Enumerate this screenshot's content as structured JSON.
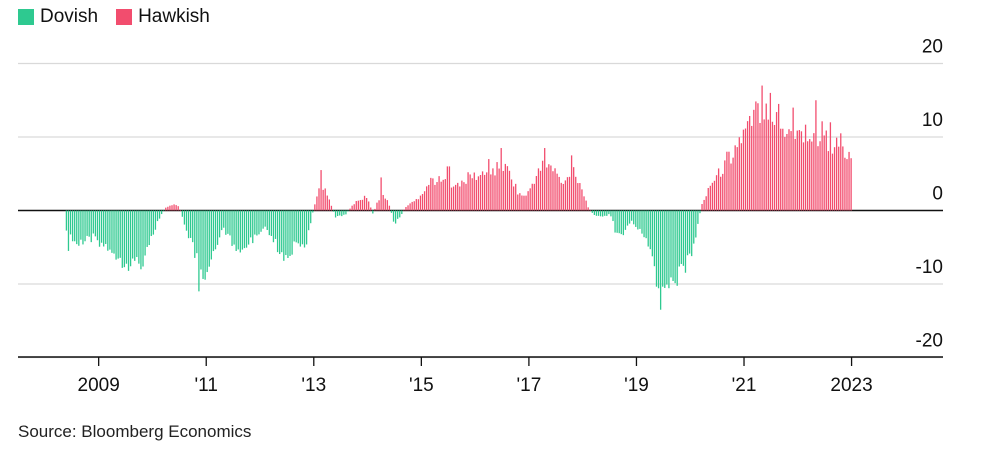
{
  "legend": [
    {
      "label": "Dovish",
      "color": "#2ec990"
    },
    {
      "label": "Hawkish",
      "color": "#f24d6e"
    }
  ],
  "source": "Source: Bloomberg Economics",
  "chart_data": {
    "type": "bar",
    "title": "",
    "xlabel": "",
    "ylabel": "",
    "ylim": [
      -20,
      20
    ],
    "y_ticks": [
      20,
      10,
      0,
      -10,
      -20
    ],
    "y_tick_labels": [
      "20",
      "10",
      "0",
      "-10",
      "-20"
    ],
    "grid": true,
    "x_range": [
      2007.5,
      2024.7
    ],
    "x_ticks": [
      2009,
      2011,
      2013,
      2015,
      2017,
      2019,
      2021,
      2023
    ],
    "x_tick_labels": [
      "2009",
      "'11",
      "'13",
      "'15",
      "'17",
      "'19",
      "'21",
      "2023"
    ],
    "dovish_color": "#2ec990",
    "hawkish_color": "#f24d6e",
    "bar_step": 0.0385,
    "series_knots": [
      [
        2008.4,
        -3.5
      ],
      [
        2008.6,
        -5
      ],
      [
        2008.9,
        -4
      ],
      [
        2009.2,
        -5.5
      ],
      [
        2009.5,
        -7.5
      ],
      [
        2009.8,
        -7.5
      ],
      [
        2009.95,
        -5
      ],
      [
        2010.1,
        -1.5
      ],
      [
        2010.25,
        0.5
      ],
      [
        2010.4,
        1
      ],
      [
        2010.5,
        0.5
      ],
      [
        2010.6,
        -2
      ],
      [
        2010.8,
        -6.5
      ],
      [
        2010.9,
        -10
      ],
      [
        2011.0,
        -9
      ],
      [
        2011.15,
        -5.5
      ],
      [
        2011.3,
        -2.5
      ],
      [
        2011.5,
        -5
      ],
      [
        2011.7,
        -5.5
      ],
      [
        2011.9,
        -4
      ],
      [
        2012.1,
        -2
      ],
      [
        2012.3,
        -5
      ],
      [
        2012.5,
        -7
      ],
      [
        2012.7,
        -4
      ],
      [
        2012.85,
        -5.5
      ],
      [
        2013.0,
        0.5
      ],
      [
        2013.15,
        4
      ],
      [
        2013.3,
        1.5
      ],
      [
        2013.4,
        -1
      ],
      [
        2013.6,
        -0.5
      ],
      [
        2013.8,
        1.5
      ],
      [
        2014.0,
        2
      ],
      [
        2014.1,
        -0.5
      ],
      [
        2014.25,
        2.5
      ],
      [
        2014.4,
        1
      ],
      [
        2014.5,
        -2
      ],
      [
        2014.6,
        -1
      ],
      [
        2014.7,
        0.5
      ],
      [
        2014.9,
        1.5
      ],
      [
        2015.0,
        2.5
      ],
      [
        2015.2,
        4.5
      ],
      [
        2015.5,
        4
      ],
      [
        2015.7,
        3.5
      ],
      [
        2015.9,
        5
      ],
      [
        2016.1,
        5
      ],
      [
        2016.3,
        5.5
      ],
      [
        2016.5,
        6.5
      ],
      [
        2016.65,
        5.5
      ],
      [
        2016.8,
        2.5
      ],
      [
        2016.95,
        2
      ],
      [
        2017.1,
        4.5
      ],
      [
        2017.3,
        7
      ],
      [
        2017.5,
        5.5
      ],
      [
        2017.65,
        3.5
      ],
      [
        2017.8,
        6.5
      ],
      [
        2017.95,
        4
      ],
      [
        2018.1,
        0.5
      ],
      [
        2018.2,
        -0.5
      ],
      [
        2018.35,
        -1
      ],
      [
        2018.5,
        -0.5
      ],
      [
        2018.6,
        -2.5
      ],
      [
        2018.75,
        -3.5
      ],
      [
        2018.9,
        -1.5
      ],
      [
        2019.0,
        -2.5
      ],
      [
        2019.2,
        -4
      ],
      [
        2019.35,
        -9
      ],
      [
        2019.45,
        -12.5
      ],
      [
        2019.55,
        -11.5
      ],
      [
        2019.7,
        -11
      ],
      [
        2019.85,
        -9
      ],
      [
        2020.0,
        -6.5
      ],
      [
        2020.1,
        -4
      ],
      [
        2020.2,
        0.5
      ],
      [
        2020.35,
        3.5
      ],
      [
        2020.5,
        5
      ],
      [
        2020.65,
        6.5
      ],
      [
        2020.8,
        8.5
      ],
      [
        2020.95,
        10.5
      ],
      [
        2021.1,
        12
      ],
      [
        2021.25,
        14.5
      ],
      [
        2021.4,
        16
      ],
      [
        2021.55,
        13.5
      ],
      [
        2021.7,
        11.5
      ],
      [
        2021.85,
        12.5
      ],
      [
        2022.0,
        11
      ],
      [
        2022.15,
        11.5
      ],
      [
        2022.3,
        10
      ],
      [
        2022.45,
        11.5
      ],
      [
        2022.55,
        10
      ],
      [
        2022.7,
        9.5
      ],
      [
        2022.85,
        8
      ],
      [
        2022.95,
        7.5
      ],
      [
        2023.0,
        7.5
      ]
    ],
    "spikes": [
      [
        2008.45,
        -5.5
      ],
      [
        2009.8,
        -8
      ],
      [
        2010.85,
        -11
      ],
      [
        2013.15,
        5.5
      ],
      [
        2013.3,
        1.5
      ],
      [
        2014.25,
        4.5
      ],
      [
        2015.5,
        6
      ],
      [
        2016.25,
        7
      ],
      [
        2016.5,
        8.5
      ],
      [
        2017.3,
        8.5
      ],
      [
        2017.8,
        7.5
      ],
      [
        2018.6,
        -3
      ],
      [
        2019.45,
        -13.5
      ],
      [
        2020.7,
        8
      ],
      [
        2021.0,
        11
      ],
      [
        2021.35,
        17
      ],
      [
        2021.5,
        16
      ],
      [
        2021.65,
        14.5
      ],
      [
        2021.9,
        14
      ],
      [
        2022.35,
        15
      ],
      [
        2022.6,
        12
      ],
      [
        2022.8,
        10.5
      ]
    ]
  }
}
